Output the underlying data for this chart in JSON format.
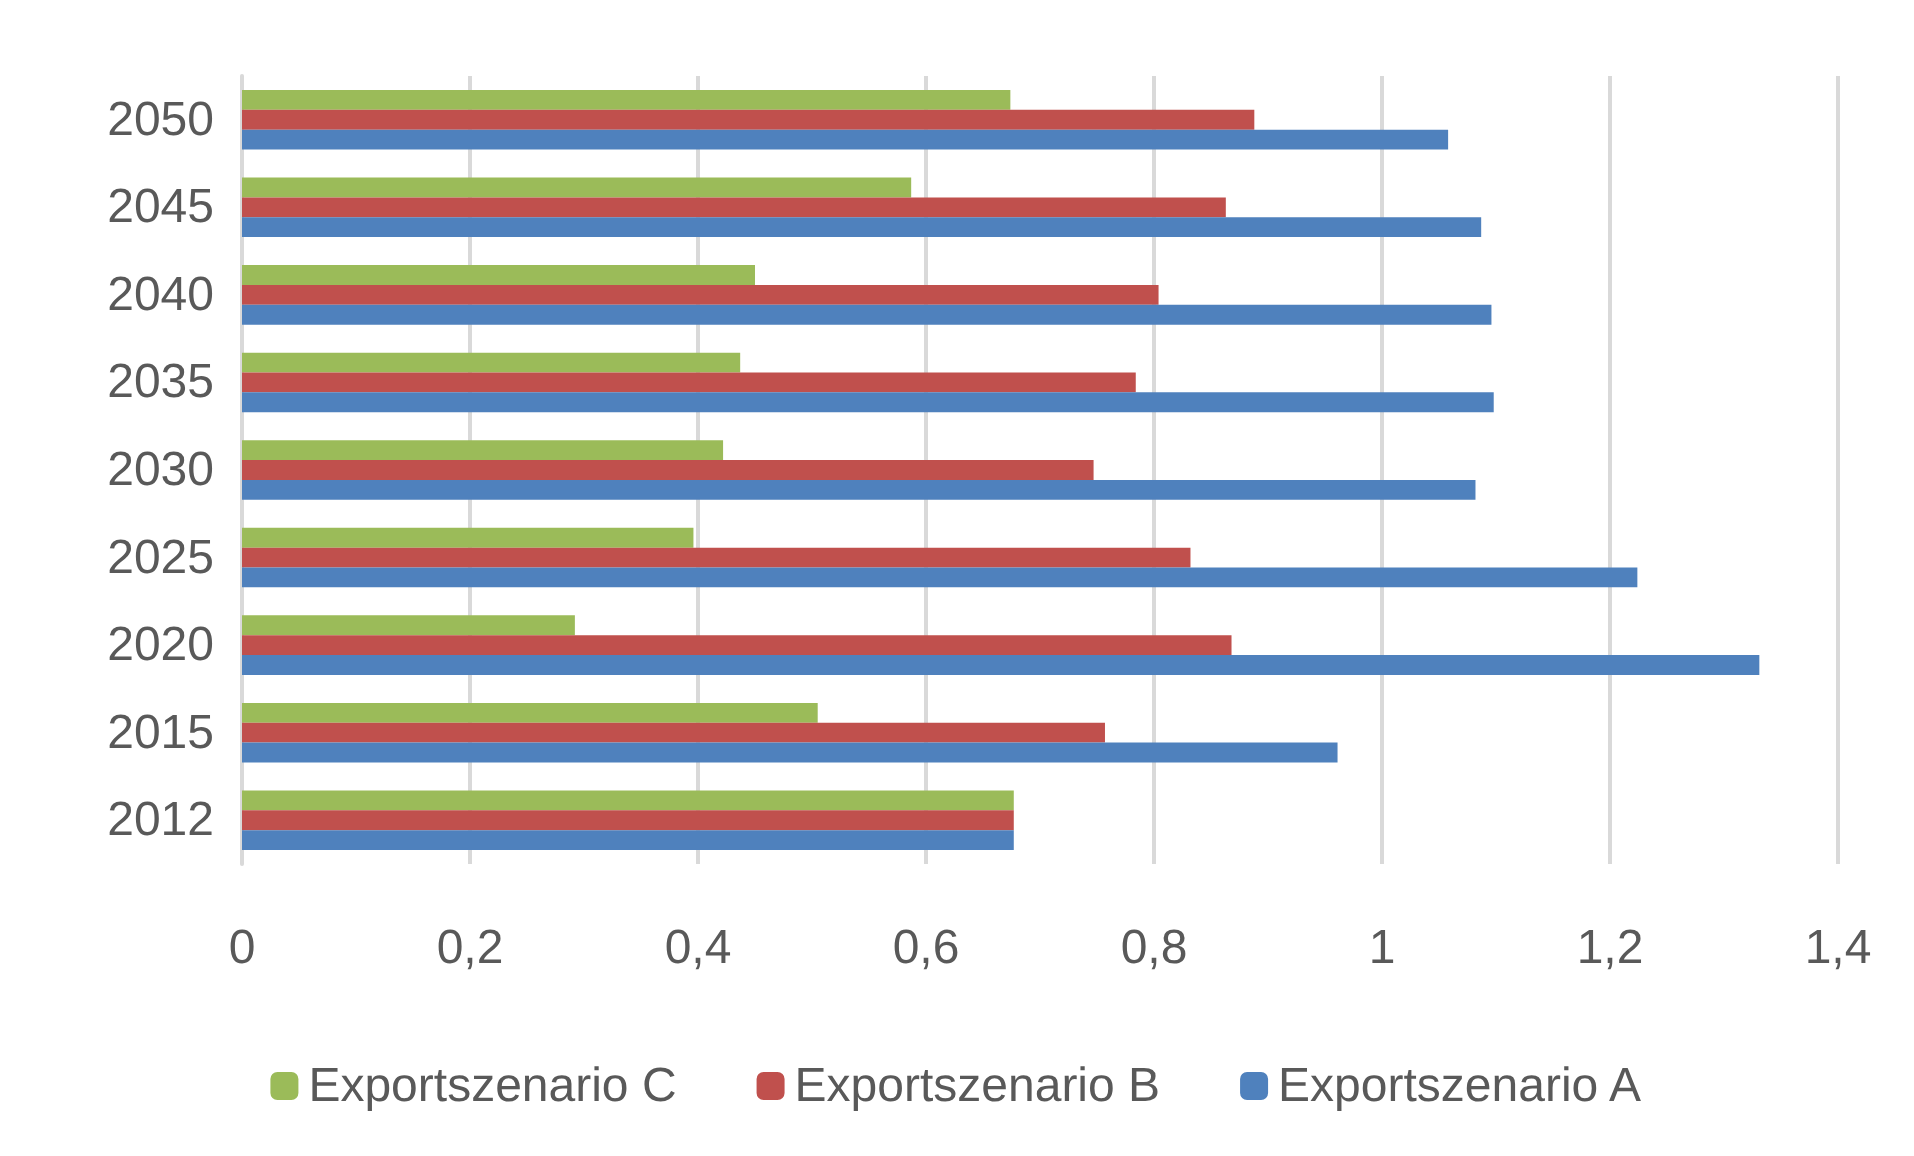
{
  "chart_data": {
    "type": "bar",
    "orientation": "horizontal",
    "categories": [
      "2050",
      "2045",
      "2040",
      "2035",
      "2030",
      "2025",
      "2020",
      "2015",
      "2012"
    ],
    "series": [
      {
        "name": "Exportszenario C",
        "color": "#9bbb59",
        "values": [
          0.674,
          0.587,
          0.45,
          0.437,
          0.422,
          0.396,
          0.292,
          0.505,
          0.677
        ]
      },
      {
        "name": "Exportszenario B",
        "color": "#c0504d",
        "values": [
          0.888,
          0.863,
          0.804,
          0.784,
          0.747,
          0.832,
          0.868,
          0.757,
          0.677
        ]
      },
      {
        "name": "Exportszenario A",
        "color": "#4f81bd",
        "values": [
          1.058,
          1.087,
          1.096,
          1.098,
          1.082,
          1.224,
          1.331,
          0.961,
          0.677
        ]
      }
    ],
    "xlim": [
      0,
      1.4
    ],
    "xticks": [
      0,
      {
        "value": 0.2,
        "label": "0,2"
      },
      {
        "value": 0.4,
        "label": "0,4"
      },
      {
        "value": 0.6,
        "label": "0,6"
      },
      {
        "value": 0.8,
        "label": "0,8"
      },
      1,
      {
        "value": 1.2,
        "label": "1,2"
      },
      {
        "value": 1.4,
        "label": "1,4"
      }
    ],
    "grid": "x",
    "legend": "bottom"
  }
}
